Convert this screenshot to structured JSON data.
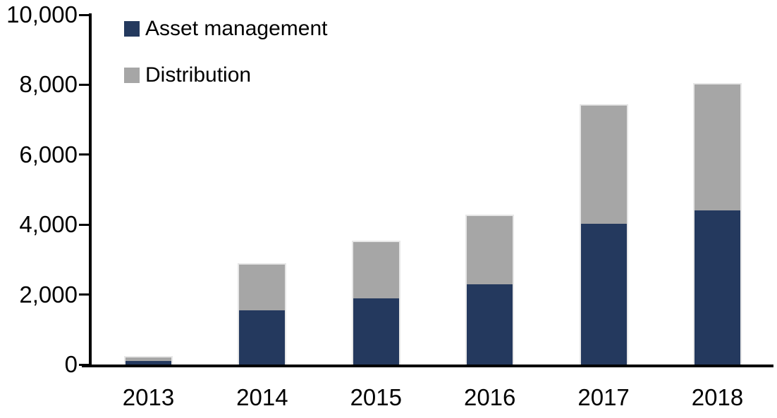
{
  "colors": {
    "asset_management": "#24395E",
    "distribution": "#A6A6A6",
    "axis": "#000000",
    "bar_edge": "#E7E7E7",
    "background": "#FFFFFF",
    "text": "#000000"
  },
  "chart_data": {
    "type": "bar",
    "stacked": true,
    "title": "",
    "xlabel": "",
    "ylabel": "",
    "grid": false,
    "legend_position": "inside-top-left",
    "categories": [
      "2013",
      "2014",
      "2015",
      "2016",
      "2017",
      "2018"
    ],
    "series": [
      {
        "name": "Asset management",
        "color": "#24395E",
        "values": [
          100,
          1550,
          1890,
          2300,
          4030,
          4410
        ]
      },
      {
        "name": "Distribution",
        "color": "#A6A6A6",
        "values": [
          100,
          1300,
          1610,
          1950,
          3370,
          3590
        ]
      }
    ],
    "totals": [
      200,
      2850,
      3500,
      4250,
      7400,
      8000
    ],
    "ylim": [
      0,
      10000
    ],
    "ytick_values": [
      0,
      2000,
      4000,
      6000,
      8000,
      10000
    ],
    "ytick_labels": [
      "0",
      "2,000",
      "4,000",
      "6,000",
      "8,000",
      "10,000"
    ]
  }
}
